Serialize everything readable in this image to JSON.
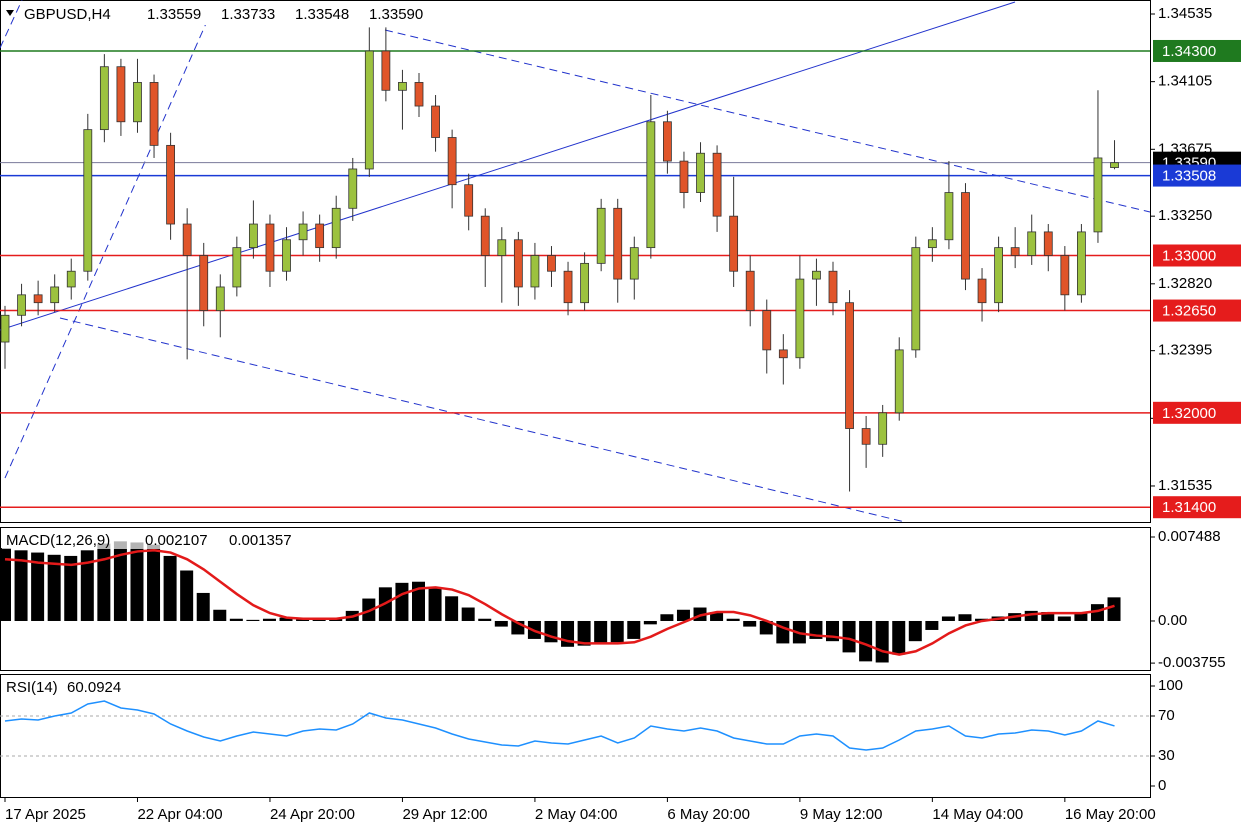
{
  "chart_data": [
    {
      "type": "candlestick",
      "title": "GBPUSD,H4",
      "ohlc_labels": [
        "1.33559",
        "1.33733",
        "1.33548",
        "1.33590"
      ],
      "up_color": "#9cc23f",
      "down_color": "#e0552a",
      "categories": [
        "17 Apr 2025",
        null,
        null,
        null,
        null,
        null,
        null,
        null,
        "22 Apr 04:00",
        null,
        null,
        null,
        null,
        null,
        null,
        null,
        "24 Apr 20:00",
        null,
        null,
        null,
        null,
        null,
        null,
        null,
        "29 Apr 12:00",
        null,
        null,
        null,
        null,
        null,
        null,
        null,
        "2 May 04:00",
        null,
        null,
        null,
        null,
        null,
        null,
        null,
        "6 May 20:00",
        null,
        null,
        null,
        null,
        null,
        null,
        null,
        "9 May 12:00",
        null,
        null,
        null,
        null,
        null,
        null,
        null,
        "14 May 04:00",
        null,
        null,
        null,
        null,
        null,
        null,
        null,
        "16 May 20:00",
        null,
        null,
        null
      ],
      "candles": [
        [
          1.3245,
          1.3268,
          1.3228,
          1.3262
        ],
        [
          1.3262,
          1.3282,
          1.3255,
          1.3275
        ],
        [
          1.3275,
          1.3284,
          1.3262,
          1.327
        ],
        [
          1.327,
          1.3288,
          1.3264,
          1.328
        ],
        [
          1.328,
          1.3298,
          1.3272,
          1.329
        ],
        [
          1.329,
          1.339,
          1.3284,
          1.338
        ],
        [
          1.338,
          1.3428,
          1.3372,
          1.342
        ],
        [
          1.342,
          1.3425,
          1.3376,
          1.3385
        ],
        [
          1.3385,
          1.3425,
          1.3378,
          1.341
        ],
        [
          1.341,
          1.3415,
          1.3362,
          1.337
        ],
        [
          1.337,
          1.3378,
          1.331,
          1.332
        ],
        [
          1.332,
          1.333,
          1.3234,
          1.33
        ],
        [
          1.33,
          1.3308,
          1.3255,
          1.3265
        ],
        [
          1.3265,
          1.3288,
          1.3248,
          1.328
        ],
        [
          1.328,
          1.3312,
          1.3274,
          1.3305
        ],
        [
          1.3305,
          1.3335,
          1.3298,
          1.332
        ],
        [
          1.332,
          1.3326,
          1.328,
          1.329
        ],
        [
          1.329,
          1.3318,
          1.3284,
          1.331
        ],
        [
          1.331,
          1.3328,
          1.33,
          1.332
        ],
        [
          1.332,
          1.3326,
          1.3296,
          1.3305
        ],
        [
          1.3305,
          1.3338,
          1.3298,
          1.333
        ],
        [
          1.333,
          1.3362,
          1.3322,
          1.3355
        ],
        [
          1.3355,
          1.3445,
          1.335,
          1.343
        ],
        [
          1.343,
          1.3445,
          1.3398,
          1.3405
        ],
        [
          1.3405,
          1.3418,
          1.338,
          1.341
        ],
        [
          1.341,
          1.3416,
          1.3388,
          1.3395
        ],
        [
          1.3395,
          1.3402,
          1.3366,
          1.3375
        ],
        [
          1.3375,
          1.338,
          1.333,
          1.3345
        ],
        [
          1.3345,
          1.3352,
          1.3316,
          1.3325
        ],
        [
          1.3325,
          1.333,
          1.328,
          1.33
        ],
        [
          1.33,
          1.3318,
          1.327,
          1.331
        ],
        [
          1.331,
          1.3315,
          1.3268,
          1.328
        ],
        [
          1.328,
          1.3308,
          1.3272,
          1.33
        ],
        [
          1.33,
          1.3306,
          1.328,
          1.329
        ],
        [
          1.329,
          1.3296,
          1.3262,
          1.327
        ],
        [
          1.327,
          1.3302,
          1.3265,
          1.3295
        ],
        [
          1.3295,
          1.3336,
          1.329,
          1.333
        ],
        [
          1.333,
          1.3336,
          1.327,
          1.3285
        ],
        [
          1.3285,
          1.3312,
          1.3272,
          1.3305
        ],
        [
          1.3305,
          1.3402,
          1.3298,
          1.3385
        ],
        [
          1.3385,
          1.3392,
          1.3352,
          1.336
        ],
        [
          1.336,
          1.3366,
          1.333,
          1.334
        ],
        [
          1.334,
          1.3372,
          1.3334,
          1.3365
        ],
        [
          1.3365,
          1.337,
          1.3315,
          1.3325
        ],
        [
          1.3325,
          1.335,
          1.328,
          1.329
        ],
        [
          1.329,
          1.33,
          1.3255,
          1.3265
        ],
        [
          1.3265,
          1.3272,
          1.3225,
          1.324
        ],
        [
          1.324,
          1.325,
          1.3218,
          1.3235
        ],
        [
          1.3235,
          1.33,
          1.3228,
          1.3285
        ],
        [
          1.3285,
          1.3298,
          1.3268,
          1.329
        ],
        [
          1.329,
          1.3296,
          1.3262,
          1.327
        ],
        [
          1.327,
          1.3278,
          1.315,
          1.319
        ],
        [
          1.319,
          1.3198,
          1.3165,
          1.318
        ],
        [
          1.318,
          1.3205,
          1.3172,
          1.32
        ],
        [
          1.32,
          1.3248,
          1.3195,
          1.324
        ],
        [
          1.324,
          1.3312,
          1.3235,
          1.3305
        ],
        [
          1.3305,
          1.3318,
          1.3296,
          1.331
        ],
        [
          1.331,
          1.336,
          1.3304,
          1.334
        ],
        [
          1.334,
          1.3346,
          1.3278,
          1.3285
        ],
        [
          1.3285,
          1.3292,
          1.3258,
          1.327
        ],
        [
          1.327,
          1.3312,
          1.3264,
          1.3305
        ],
        [
          1.3305,
          1.3318,
          1.3292,
          1.33
        ],
        [
          1.33,
          1.3326,
          1.3294,
          1.3315
        ],
        [
          1.3315,
          1.332,
          1.329,
          1.33
        ],
        [
          1.33,
          1.3306,
          1.3265,
          1.3275
        ],
        [
          1.3275,
          1.332,
          1.327,
          1.3315
        ],
        [
          1.3315,
          1.3405,
          1.3308,
          1.3362
        ],
        [
          1.33559,
          1.33733,
          1.33548,
          1.3359
        ]
      ],
      "ylim": [
        1.31306,
        1.34624
      ],
      "yticks": [
        1.34535,
        1.34105,
        1.33675,
        {
          "value": 1.3325,
          "label": "1.33250"
        },
        {
          "value": 1.3282,
          "label": "1.32820"
        },
        1.32395,
        1.31965,
        1.31535
      ],
      "levels": [
        {
          "value": 1.343,
          "label": "1.34300",
          "color": "#1f7a1f"
        },
        {
          "value": 1.3359,
          "label": "1.33590",
          "color": "#000000"
        },
        {
          "value": 1.33508,
          "label": "1.33508",
          "color": "#1a3ad6"
        },
        {
          "value": 1.33,
          "label": "1.33000",
          "color": "#e51c1c"
        },
        {
          "value": 1.3265,
          "label": "1.32650",
          "color": "#e51c1c"
        },
        {
          "value": 1.32,
          "label": "1.32000",
          "color": "#e51c1c"
        },
        {
          "value": 1.314,
          "label": "1.31400",
          "color": "#e51c1c"
        }
      ]
    },
    {
      "type": "macd",
      "title": "MACD(12,26,9)",
      "series": [
        {
          "name": "MACD",
          "color": "#000000",
          "values": [
            0.0065,
            0.0063,
            0.0061,
            0.0059,
            0.0058,
            0.0063,
            0.0069,
            0.0071,
            0.007,
            0.0068,
            0.0058,
            0.0045,
            0.0025,
            0.001,
            0.0002,
            0.0001,
            0.0002,
            0.0003,
            0.0003,
            0.0002,
            0.0003,
            0.0009,
            0.002,
            0.003,
            0.0034,
            0.0035,
            0.003,
            0.0022,
            0.0012,
            0.0002,
            -0.0005,
            -0.0012,
            -0.0016,
            -0.0019,
            -0.0023,
            -0.0022,
            -0.002,
            -0.0019,
            -0.0016,
            -0.0003,
            0.0006,
            0.001,
            0.0012,
            0.0008,
            0.0002,
            -0.0005,
            -0.0012,
            -0.002,
            -0.002,
            -0.0016,
            -0.0018,
            -0.0028,
            -0.0036,
            -0.0037,
            -0.003,
            -0.0018,
            -0.0008,
            0.0004,
            0.0006,
            0.0002,
            0.0004,
            0.0007,
            0.0009,
            0.0008,
            0.0004,
            0.0007,
            0.0015,
            0.002107
          ]
        },
        {
          "name": "Signal",
          "color": "#e31a1a",
          "values": [
            0.0055,
            0.0054,
            0.0052,
            0.0051,
            0.005,
            0.0052,
            0.0055,
            0.0059,
            0.0062,
            0.0063,
            0.0061,
            0.0055,
            0.0046,
            0.0035,
            0.0024,
            0.0014,
            0.0007,
            0.0003,
            0.0002,
            0.0002,
            0.0002,
            0.0004,
            0.0009,
            0.0016,
            0.0024,
            0.0029,
            0.003,
            0.0028,
            0.0023,
            0.0015,
            0.0006,
            -0.0002,
            -0.0009,
            -0.0014,
            -0.0018,
            -0.002,
            -0.002,
            -0.002,
            -0.0019,
            -0.0014,
            -0.0007,
            -0.0001,
            0.0005,
            0.0008,
            0.0008,
            0.0005,
            0,
            -0.0006,
            -0.0011,
            -0.0013,
            -0.0014,
            -0.0016,
            -0.0021,
            -0.0027,
            -0.003,
            -0.0027,
            -0.002,
            -0.0011,
            -0.0004,
            0,
            0.0002,
            0.0004,
            0.0006,
            0.0007,
            0.0007,
            0.0007,
            0.0009,
            0.001357
          ]
        }
      ],
      "ylim": [
        -0.00437,
        0.0082
      ],
      "yticks": [
        0.007488,
        {
          "value": 0,
          "label": "0.00"
        },
        -0.003755
      ]
    },
    {
      "type": "rsi",
      "title": "RSI(14)",
      "color": "#1e90ff",
      "values": [
        65,
        67,
        66,
        70,
        73,
        82,
        85,
        78,
        76,
        72,
        62,
        55,
        49,
        45,
        50,
        54,
        52,
        50,
        55,
        57,
        56,
        62,
        73,
        68,
        66,
        62,
        58,
        52,
        47,
        44,
        41,
        40,
        45,
        43,
        42,
        46,
        50,
        43,
        48,
        60,
        57,
        55,
        58,
        55,
        48,
        45,
        42,
        42,
        50,
        52,
        50,
        38,
        36,
        38,
        46,
        55,
        57,
        60,
        50,
        48,
        52,
        53,
        56,
        55,
        51,
        55,
        65,
        60.0924
      ],
      "ylim": [
        -10,
        110
      ],
      "yticks": [
        100,
        70,
        30,
        0
      ]
    }
  ]
}
